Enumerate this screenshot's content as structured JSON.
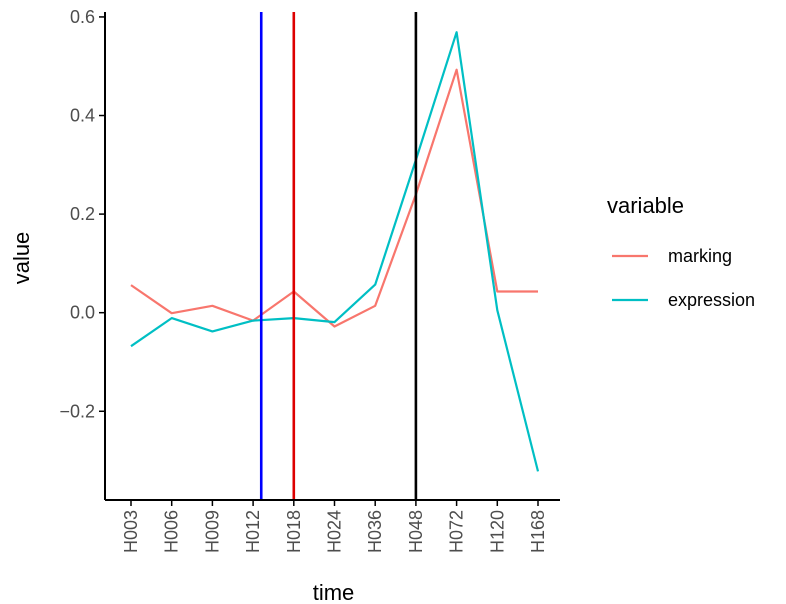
{
  "chart_data": {
    "type": "line",
    "xlabel": "time",
    "ylabel": "value",
    "categories": [
      "H003",
      "H006",
      "H009",
      "H012",
      "H018",
      "H024",
      "H036",
      "H048",
      "H072",
      "H120",
      "H168"
    ],
    "ylim": [
      -0.38,
      0.61
    ],
    "yticks": [
      0.6,
      0.4,
      0.2,
      0.0,
      -0.2
    ],
    "ytick_labels": [
      "0.6",
      "0.4",
      "0.2",
      "0.0",
      "−0.2"
    ],
    "grid": false,
    "legend": {
      "title": "variable",
      "position": "right"
    },
    "series": [
      {
        "name": "marking",
        "color": "#f8766d",
        "values": [
          0.056,
          -0.001,
          0.014,
          -0.016,
          0.043,
          -0.028,
          0.014,
          0.24,
          0.493,
          0.043,
          0.043
        ]
      },
      {
        "name": "expression",
        "color": "#00bfc4",
        "values": [
          -0.068,
          -0.011,
          -0.038,
          -0.016,
          -0.011,
          -0.019,
          0.057,
          0.31,
          0.569,
          0.005,
          -0.322
        ]
      }
    ],
    "vlines": [
      {
        "x": 3.2,
        "color": "#0000ff"
      },
      {
        "x": 4.0,
        "color": "#dd0000"
      },
      {
        "x": 7.0,
        "color": "#000000"
      }
    ]
  }
}
